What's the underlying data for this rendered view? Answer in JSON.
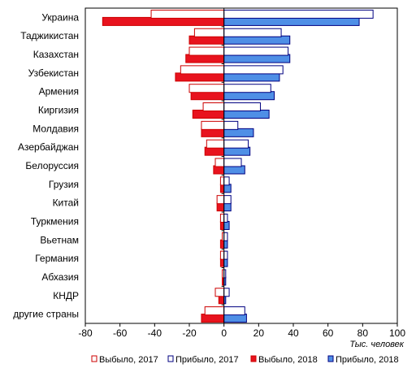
{
  "chart_data": {
    "type": "bar",
    "orientation": "horizontal",
    "categories": [
      "Украина",
      "Таджикистан",
      "Казахстан",
      "Узбекистан",
      "Армения",
      "Киргизия",
      "Молдавия",
      "Азербайджан",
      "Белоруссия",
      "Грузия",
      "Китай",
      "Туркмения",
      "Вьетнам",
      "Германия",
      "Абхазия",
      "КНДР",
      "другие страны"
    ],
    "series": [
      {
        "name": "Прибыло, 2017",
        "color": "#ffffff",
        "stroke": "#000080",
        "side": "right",
        "values": [
          86,
          33,
          37,
          34,
          27,
          21,
          8,
          14,
          10,
          3,
          4,
          2,
          2,
          2,
          1,
          3,
          12
        ]
      },
      {
        "name": "Прибыло, 2018",
        "color": "#4f8fe6",
        "stroke": "#000080",
        "side": "right",
        "values": [
          78,
          38,
          38,
          32,
          29,
          26,
          17,
          15,
          12,
          4,
          4,
          3,
          2,
          2,
          1,
          1,
          13
        ]
      },
      {
        "name": "Выбыло, 2017",
        "color": "#ffffff",
        "stroke": "#cc0000",
        "side": "left",
        "values": [
          -42,
          -17,
          -20,
          -25,
          -20,
          -12,
          -13,
          -10,
          -5,
          -2,
          -4,
          -2,
          -1,
          -2,
          -1,
          -5,
          -11
        ]
      },
      {
        "name": "Выбыло, 2018",
        "color": "#e8131e",
        "stroke": "#cc0000",
        "side": "left",
        "values": [
          -70,
          -20,
          -22,
          -28,
          -19,
          -18,
          -13,
          -11,
          -6,
          -2,
          -4,
          -2,
          -2,
          -2,
          -1,
          -3,
          -13
        ]
      }
    ],
    "xlim": [
      -80,
      100
    ],
    "xticks": [
      "-80",
      "-60",
      "-40",
      "-20",
      "0",
      "20",
      "40",
      "60",
      "80",
      "100"
    ],
    "xticks_values": [
      -80,
      -60,
      -40,
      -20,
      0,
      20,
      40,
      60,
      80,
      100
    ],
    "xlabel": "Тыс. человек",
    "legend_order": [
      "Выбыло, 2017",
      "Прибыло, 2017",
      "Выбыло, 2018",
      "Прибыло, 2018"
    ],
    "legend_position": "bottom",
    "grid": false
  }
}
